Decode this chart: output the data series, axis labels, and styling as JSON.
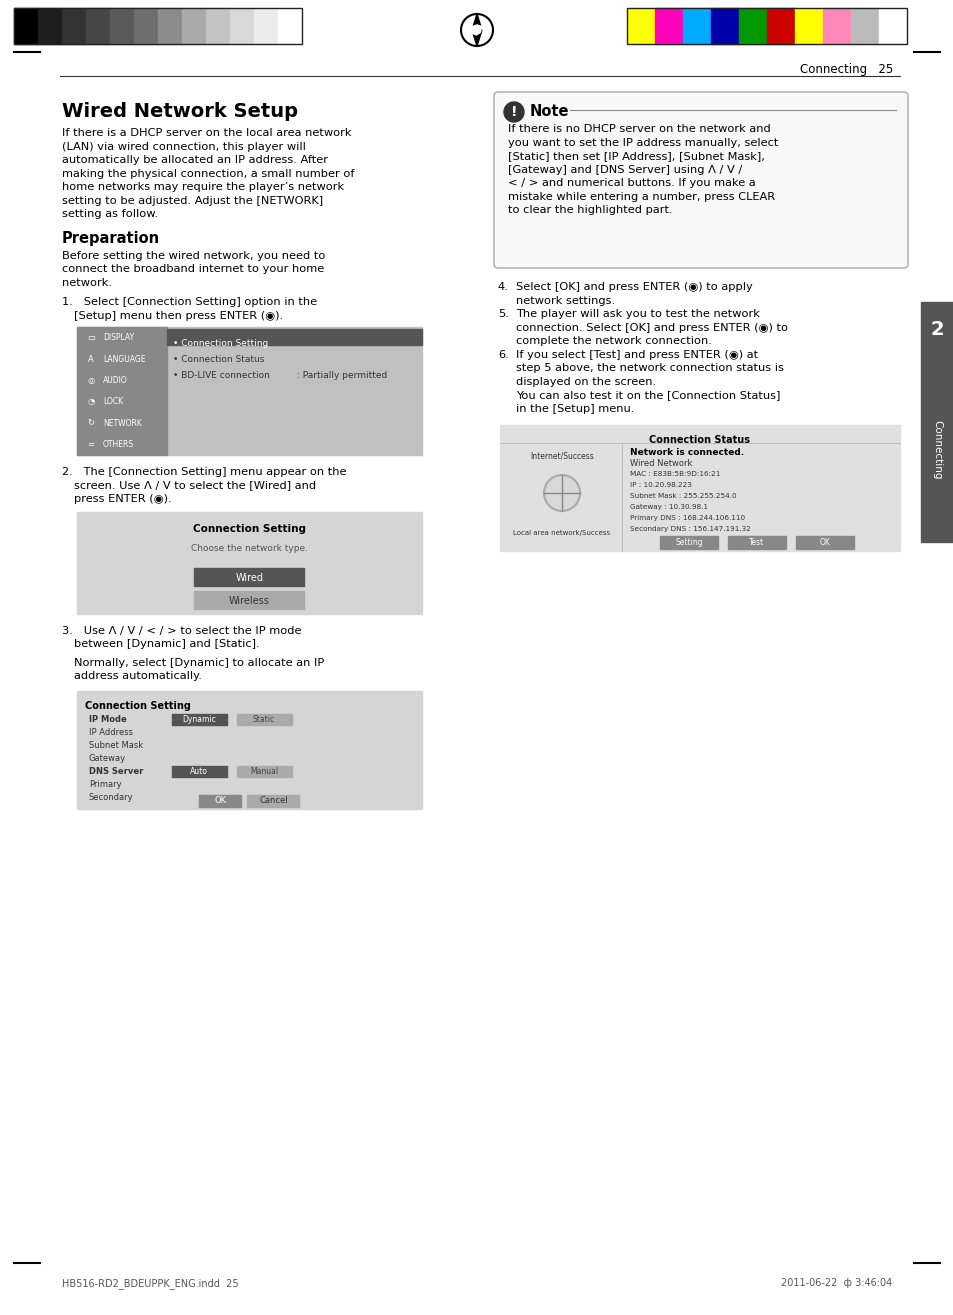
{
  "page_num": "25",
  "section_header": "Connecting",
  "title": "Wired Network Setup",
  "body_text_left": [
    "If there is a DHCP server on the local area network",
    "(LAN) via wired connection, this player will",
    "automatically be allocated an IP address. After",
    "making the physical connection, a small number of",
    "home networks may require the player’s network",
    "setting to be adjusted. Adjust the [NETWORK]",
    "setting as follow."
  ],
  "prep_title": "Preparation",
  "prep_text": [
    "Before setting the wired network, you need to",
    "connect the broadband internet to your home",
    "network."
  ],
  "note_title": "Note",
  "note_text": [
    "If there is no DHCP server on the network and",
    "you want to set the IP address manually, select",
    "[Static] then set [IP Address], [Subnet Mask],",
    "[Gateway] and [DNS Server] using Λ / V /",
    "< / > and numerical buttons. If you make a",
    "mistake while entering a number, press CLEAR",
    "to clear the highlighted part."
  ],
  "steps_right": [
    [
      "4.",
      "Select [OK] and press ENTER (◉) to apply"
    ],
    [
      "",
      "network settings."
    ],
    [
      "5.",
      "The player will ask you to test the network"
    ],
    [
      "",
      "connection. Select [OK] and press ENTER (◉) to"
    ],
    [
      "",
      "complete the network connection."
    ],
    [
      "6.",
      "If you select [Test] and press ENTER (◉) at"
    ],
    [
      "",
      "step 5 above, the network connection status is"
    ],
    [
      "",
      "displayed on the screen."
    ],
    [
      "",
      "You can also test it on the [Connection Status]"
    ],
    [
      "",
      "in the [Setup] menu."
    ]
  ],
  "sidebar_text": "Connecting",
  "sidebar_num": "2",
  "footer_left": "HB516-RD2_BDEUPPK_ENG.indd  25",
  "footer_right": "2011-06-22  ф 3:46:04",
  "bg_color": "#ffffff",
  "grayscale_colors": [
    "#000000",
    "#1e1e1e",
    "#333333",
    "#464646",
    "#5a5a5a",
    "#6e6e6e",
    "#8c8c8c",
    "#aaaaaa",
    "#c3c3c3",
    "#d8d8d8",
    "#ececec",
    "#ffffff"
  ],
  "color_bars_right": [
    "#ffff00",
    "#ff00bb",
    "#00aaff",
    "#0000aa",
    "#009900",
    "#cc0000",
    "#ffff00",
    "#ff88bb",
    "#bbbbbb",
    "#ffffff"
  ]
}
